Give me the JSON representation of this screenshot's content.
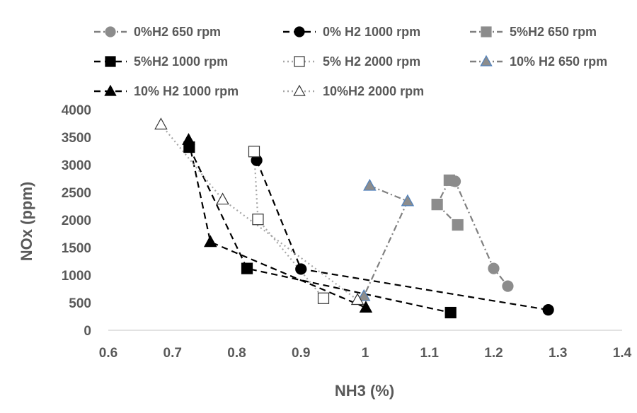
{
  "chart_data": {
    "type": "scatter",
    "title": "",
    "xlabel": "NH3 (%)",
    "ylabel": "NOx (ppm)",
    "xlim": [
      0.6,
      1.4
    ],
    "ylim": [
      0,
      4000
    ],
    "xticks": [
      "0.6",
      "0.7",
      "0.8",
      "0.9",
      "1",
      "1.1",
      "1.2",
      "1.3",
      "1.4"
    ],
    "yticks": [
      "0",
      "500",
      "1000",
      "1500",
      "2000",
      "2500",
      "3000",
      "3500",
      "4000"
    ],
    "grid": false,
    "legend_position": "top",
    "series": [
      {
        "name": "0%H2 650 rpm",
        "marker": "circle",
        "fill": "#8c8c8c",
        "edge": "#8c8c8c",
        "line_color": "#808080",
        "dash": "dashdot",
        "x": [
          1.136,
          1.14,
          1.2,
          1.222
        ],
        "y": [
          2710,
          2700,
          1120,
          800
        ]
      },
      {
        "name": "0% H2 1000 rpm",
        "marker": "circle",
        "fill": "#000000",
        "edge": "#000000",
        "line_color": "#000000",
        "dash": "dash",
        "x": [
          0.831,
          0.9,
          1.285
        ],
        "y": [
          3080,
          1110,
          370
        ]
      },
      {
        "name": "5%H2 650 rpm",
        "marker": "square",
        "fill": "#8c8c8c",
        "edge": "#8c8c8c",
        "line_color": "#808080",
        "dash": "dashdot",
        "x": [
          1.131,
          1.112,
          1.144
        ],
        "y": [
          2720,
          2280,
          1910
        ]
      },
      {
        "name": "5%H2 1000 rpm",
        "marker": "square",
        "fill": "#000000",
        "edge": "#000000",
        "line_color": "#000000",
        "dash": "dash",
        "x": [
          0.726,
          0.816,
          1.133
        ],
        "y": [
          3320,
          1120,
          320
        ]
      },
      {
        "name": "5% H2 2000 rpm",
        "marker": "square",
        "fill": "#ffffff",
        "edge": "#333333",
        "line_color": "#a6a6a6",
        "dash": "dot",
        "x": [
          0.827,
          0.833,
          0.935
        ],
        "y": [
          3240,
          2010,
          580
        ]
      },
      {
        "name": "10% H2 650 rpm",
        "marker": "triangle",
        "fill": "#8c8c8c",
        "edge": "#4f81bd",
        "line_color": "#808080",
        "dash": "dashdot",
        "x": [
          1.007,
          1.066,
          0.998
        ],
        "y": [
          2620,
          2340,
          620
        ]
      },
      {
        "name": "10% H2 1000 rpm",
        "marker": "triangle",
        "fill": "#000000",
        "edge": "#000000",
        "line_color": "#000000",
        "dash": "dash",
        "x": [
          0.725,
          0.759,
          1.001
        ],
        "y": [
          3450,
          1600,
          410
        ]
      },
      {
        "name": "10%H2 2000 rpm",
        "marker": "triangle",
        "fill": "#ffffff",
        "edge": "#333333",
        "line_color": "#a6a6a6",
        "dash": "dot",
        "x": [
          0.682,
          0.778,
          0.988
        ],
        "y": [
          3730,
          2370,
          550
        ]
      }
    ]
  }
}
